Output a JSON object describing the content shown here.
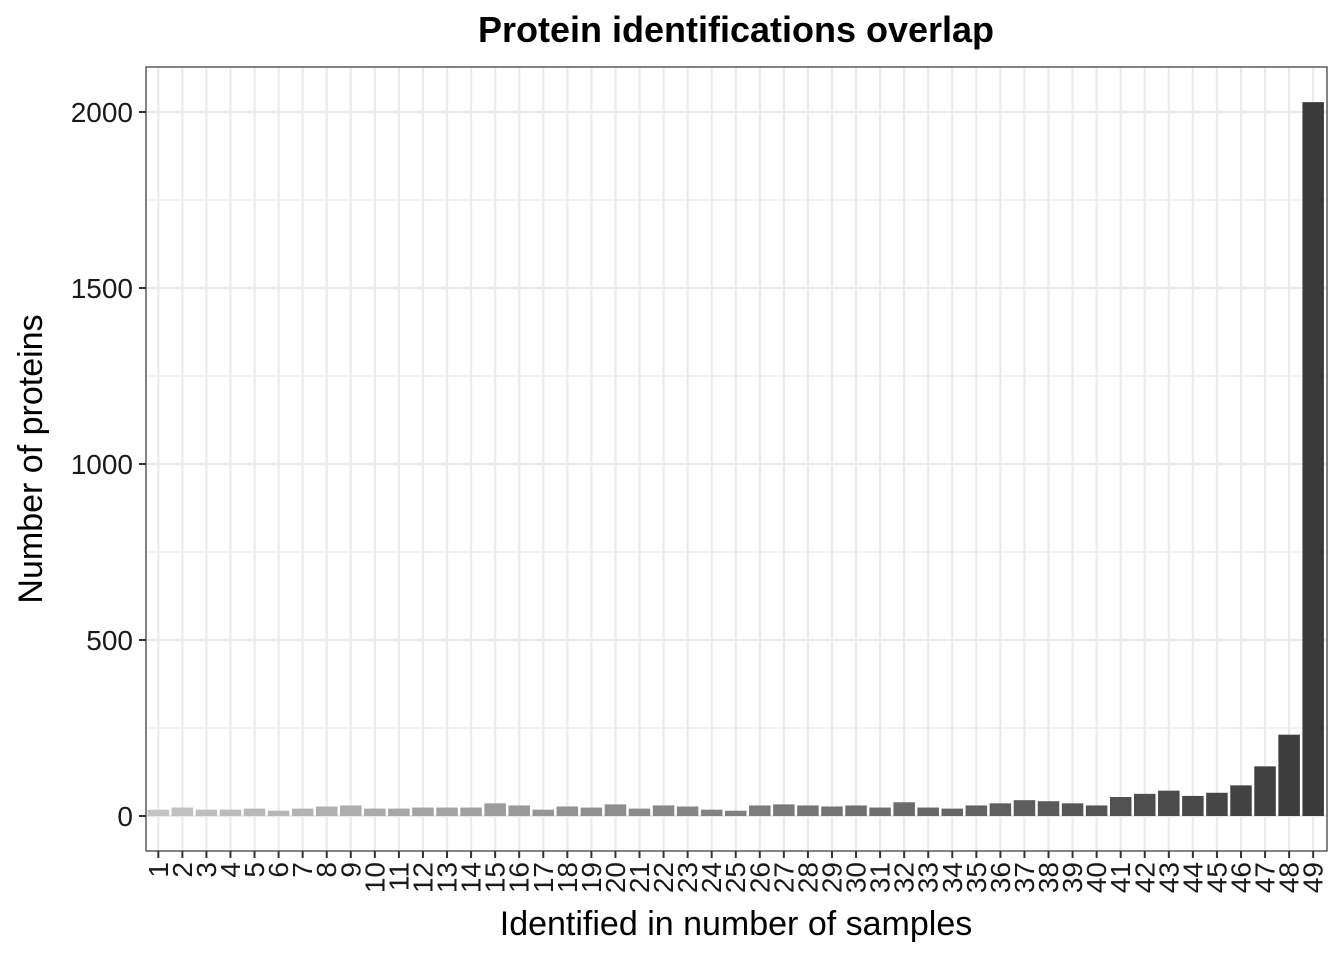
{
  "chart_data": {
    "type": "bar",
    "title": "Protein identifications overlap",
    "xlabel": "Identified in number of samples",
    "ylabel": "Number of proteins",
    "categories": [
      "1",
      "2",
      "3",
      "4",
      "5",
      "6",
      "7",
      "8",
      "9",
      "10",
      "11",
      "12",
      "13",
      "14",
      "15",
      "16",
      "17",
      "18",
      "19",
      "20",
      "21",
      "22",
      "23",
      "24",
      "25",
      "26",
      "27",
      "28",
      "29",
      "30",
      "31",
      "32",
      "33",
      "34",
      "35",
      "36",
      "37",
      "38",
      "39",
      "40",
      "41",
      "42",
      "43",
      "44",
      "45",
      "46",
      "47",
      "48",
      "49"
    ],
    "values": [
      18,
      24,
      18,
      18,
      21,
      15,
      21,
      27,
      30,
      21,
      21,
      24,
      24,
      24,
      36,
      30,
      18,
      27,
      24,
      33,
      21,
      30,
      27,
      18,
      15,
      30,
      33,
      30,
      27,
      30,
      24,
      39,
      24,
      21,
      30,
      36,
      45,
      42,
      36,
      30,
      54,
      63,
      72,
      57,
      66,
      87,
      141,
      231,
      2028
    ],
    "yticks": [
      0,
      500,
      1000,
      1500,
      2000
    ],
    "ylim": [
      -100,
      2130
    ],
    "grid": true,
    "colors": {
      "bar_light": "#c4c4c4",
      "bar_dark": "#3a3a3a",
      "grid": "#ebebeb",
      "panel_border": "#333333",
      "background": "#ffffff"
    }
  }
}
